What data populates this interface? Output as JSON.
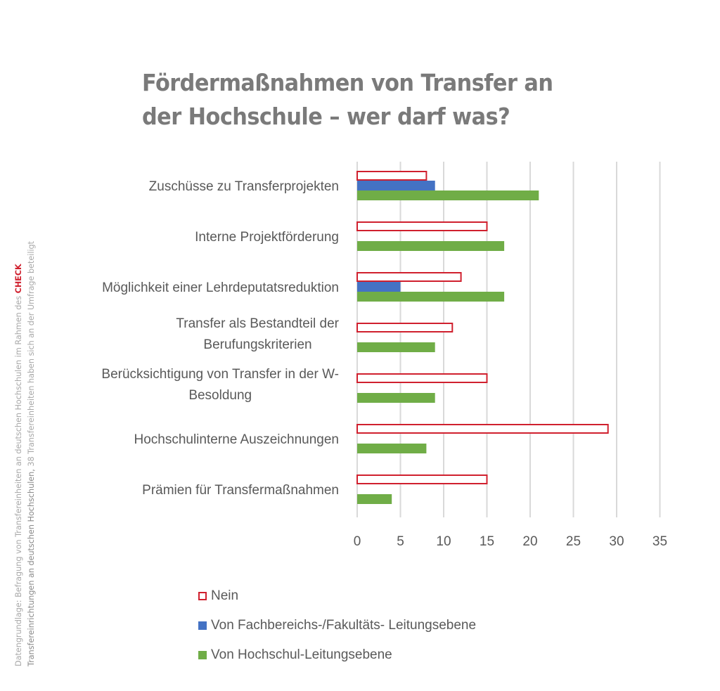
{
  "title_lines": [
    "Fördermaßnahmen von Transfer an",
    "der Hochschule – wer darf was?"
  ],
  "side_note": {
    "line1_prefix": "Datengrundlage: Befragung von Transfereinheiten an deutschen Hochschulen im Rahmen des ",
    "line1_highlight": "CHECK",
    "line2_dark": "Transfereinrichtungen an deutschen Hochschulen,",
    "line2_rest": "  38 Transfereinheiten haben sich an der Umfrage beteiligt",
    "highlight_color": "#d0202e"
  },
  "chart_data": {
    "type": "bar",
    "orientation": "horizontal",
    "title": "Fördermaßnahmen von Transfer an der Hochschule – wer darf was?",
    "categories": [
      [
        "Zuschüsse zu Transferprojekten"
      ],
      [
        "Interne Projektförderung"
      ],
      [
        "Möglichkeit einer Lehrdeputatsreduktion"
      ],
      [
        "Transfer als Bestandteil der",
        "Berufungskriterien"
      ],
      [
        "Berücksichtigung von Transfer in der W-",
        "Besoldung"
      ],
      [
        "Hochschulinterne Auszeichnungen"
      ],
      [
        "Prämien für Transfermaßnahmen"
      ]
    ],
    "series": [
      {
        "name": "Nein",
        "style": "outline",
        "color": "#d0202e",
        "values": [
          8,
          15,
          12,
          11,
          15,
          29,
          15
        ]
      },
      {
        "name": "Von Fachbereichs-/Fakultäts- Leitungsebene",
        "style": "fill",
        "color": "#4472c4",
        "values": [
          9,
          0,
          5,
          0,
          0,
          0,
          0
        ]
      },
      {
        "name": "Von Hochschul-Leitungsebene",
        "style": "fill",
        "color": "#70ad47",
        "values": [
          21,
          17,
          17,
          9,
          9,
          8,
          4
        ]
      }
    ],
    "xlabel": "",
    "ylabel": "",
    "xlim": [
      0,
      35
    ],
    "xticks": [
      0,
      5,
      10,
      15,
      20,
      25,
      30,
      35
    ],
    "grid": true,
    "legend_position": "bottom-left"
  }
}
